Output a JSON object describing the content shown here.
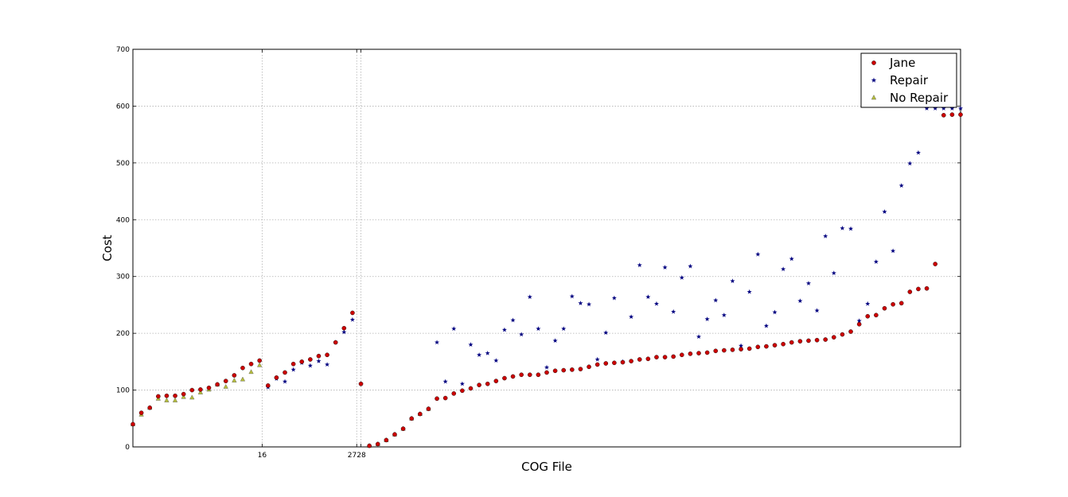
{
  "chart_data": {
    "type": "scatter",
    "xlabel": "COG File",
    "ylabel": "Cost",
    "xlim": [
      0,
      98
    ],
    "ylim": [
      0,
      700
    ],
    "yticks": [
      0,
      100,
      200,
      300,
      400,
      500,
      600,
      700
    ],
    "xticks": [
      {
        "value": 15.3,
        "label": "16"
      },
      {
        "value": 26.5,
        "label": "2728"
      },
      {
        "value": 27.0,
        "label": ""
      }
    ],
    "grid": true,
    "legend_position": "top-right",
    "colors": {
      "jane": "#cc0000",
      "repair": "#000080",
      "no_repair": "#b5bd3a"
    },
    "series": [
      {
        "name": "Jane",
        "marker": "circle",
        "color": "#cc0000",
        "x": [
          0,
          1,
          2,
          3,
          4,
          5,
          6,
          7,
          8,
          9,
          10,
          11,
          12,
          13,
          14,
          15,
          16,
          17,
          18,
          19,
          20,
          21,
          22,
          23,
          24,
          25,
          26,
          27,
          28,
          29,
          30,
          31,
          32,
          33,
          34,
          35,
          36,
          37,
          38,
          39,
          40,
          41,
          42,
          43,
          44,
          45,
          46,
          47,
          48,
          49,
          50,
          51,
          52,
          53,
          54,
          55,
          56,
          57,
          58,
          59,
          60,
          61,
          62,
          63,
          64,
          65,
          66,
          67,
          68,
          69,
          70,
          71,
          72,
          73,
          74,
          75,
          76,
          77,
          78,
          79,
          80,
          81,
          82,
          83,
          84,
          85,
          86,
          87,
          88,
          89,
          90,
          91,
          92,
          93,
          94,
          95,
          96,
          97,
          98
        ],
        "y": [
          40,
          60,
          69,
          89,
          90,
          90,
          93,
          100,
          101,
          104,
          110,
          116,
          126,
          139,
          146,
          152,
          108,
          122,
          131,
          146,
          150,
          154,
          160,
          162,
          184,
          209,
          236,
          111,
          2,
          5,
          12,
          22,
          32,
          50,
          58,
          67,
          85,
          86,
          94,
          99,
          103,
          109,
          111,
          116,
          121,
          124,
          127,
          127,
          127,
          131,
          134,
          135,
          136,
          137,
          141,
          145,
          147,
          148,
          149,
          151,
          154,
          155,
          158,
          158,
          159,
          162,
          164,
          165,
          166,
          169,
          170,
          171,
          172,
          173,
          176,
          177,
          179,
          181,
          184,
          186,
          187,
          188,
          189,
          193,
          198,
          203,
          216,
          230,
          232,
          244,
          251,
          253,
          273,
          278,
          279,
          322,
          584,
          585,
          585
        ]
      },
      {
        "name": "Repair",
        "marker": "star",
        "color": "#000080",
        "x": [
          16,
          17,
          18,
          19,
          20,
          21,
          22,
          23,
          24,
          25,
          26,
          27,
          36,
          37,
          38,
          39,
          40,
          41,
          42,
          43,
          44,
          45,
          46,
          47,
          48,
          49,
          50,
          51,
          52,
          53,
          54,
          55,
          56,
          57,
          58,
          59,
          60,
          61,
          62,
          63,
          64,
          65,
          66,
          67,
          68,
          69,
          70,
          71,
          72,
          73,
          74,
          75,
          76,
          77,
          78,
          79,
          80,
          81,
          82,
          83,
          84,
          85,
          86,
          87,
          88,
          89,
          90,
          91,
          92,
          93,
          94,
          95,
          96,
          97,
          98
        ],
        "y": [
          105,
          120,
          115,
          136,
          148,
          143,
          151,
          145,
          184,
          202,
          224,
          111,
          184,
          115,
          208,
          111,
          180,
          162,
          165,
          152,
          206,
          223,
          198,
          264,
          208,
          140,
          187,
          208,
          265,
          253,
          251,
          154,
          201,
          262,
          150,
          229,
          320,
          264,
          252,
          316,
          238,
          298,
          318,
          194,
          225,
          258,
          232,
          292,
          178,
          273,
          339,
          213,
          237,
          313,
          331,
          257,
          288,
          240,
          371,
          306,
          385,
          384,
          222,
          252,
          326,
          414,
          345,
          460,
          499,
          518,
          596,
          596,
          596,
          596,
          596
        ]
      },
      {
        "name": "No Repair",
        "marker": "triangle",
        "color": "#b5bd3a",
        "x": [
          0,
          1,
          2,
          3,
          4,
          5,
          6,
          7,
          8,
          9,
          10,
          11,
          12,
          13,
          14,
          15,
          28,
          29,
          30,
          31,
          32,
          33,
          34,
          35
        ],
        "y": [
          40,
          57,
          69,
          85,
          82,
          82,
          88,
          87,
          96,
          101,
          110,
          106,
          117,
          119,
          132,
          144,
          2,
          5,
          12,
          22,
          32,
          50,
          58,
          67
        ]
      }
    ]
  }
}
